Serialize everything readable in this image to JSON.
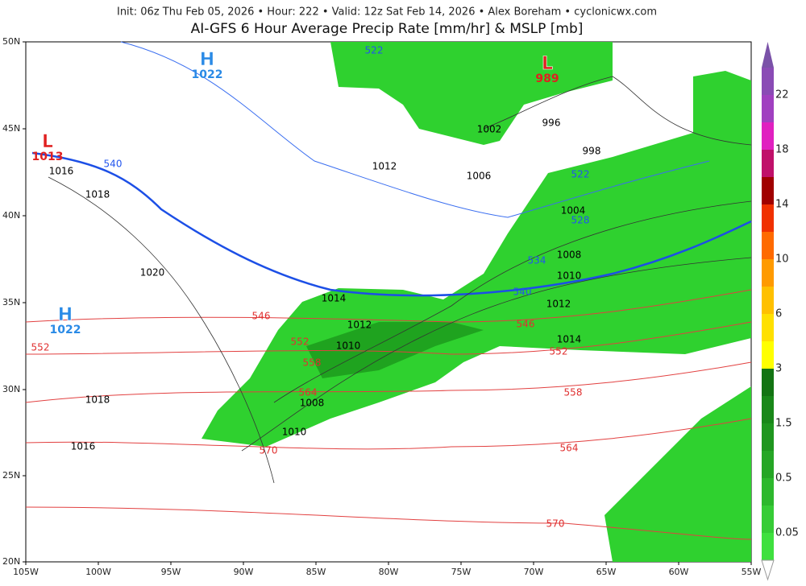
{
  "header": {
    "info": "Init: 06z Thu Feb 05, 2026 • Hour: 222 • Valid: 12z Sat Feb 14, 2026 • Alex Boreham • cyclonicwx.com",
    "title": "AI-GFS 6 Hour Average Precip Rate [mm/hr] & MSLP [mb]"
  },
  "lat_labels": [
    "50N",
    "45N",
    "40N",
    "35N",
    "30N",
    "25N",
    "20N"
  ],
  "lon_labels": [
    "105W",
    "100W",
    "95W",
    "90W",
    "85W",
    "80W",
    "75W",
    "70W",
    "65W",
    "60W",
    "55W"
  ],
  "colorbar_labels": [
    "22",
    "18",
    "14",
    "10",
    "6",
    "3",
    "1.5",
    "0.5",
    "0.05"
  ],
  "centers": [
    {
      "letter": "H",
      "value": "1022"
    },
    {
      "letter": "L",
      "value": "1013"
    },
    {
      "letter": "L",
      "value": "989"
    },
    {
      "letter": "H",
      "value": "1022"
    }
  ],
  "isobar_labels": [
    "1016",
    "1018",
    "1020",
    "1012",
    "1002",
    "996",
    "998",
    "1006",
    "1004",
    "1008",
    "1010",
    "1012",
    "1014",
    "1014",
    "1012",
    "1010",
    "1008",
    "1010",
    "1018",
    "1016"
  ],
  "thickness_labels_red": [
    "546",
    "552",
    "552",
    "558",
    "564",
    "570",
    "546",
    "552",
    "558",
    "564",
    "570"
  ],
  "thickness_labels_blue": [
    "522",
    "540",
    "522",
    "528",
    "534",
    "540"
  ]
}
